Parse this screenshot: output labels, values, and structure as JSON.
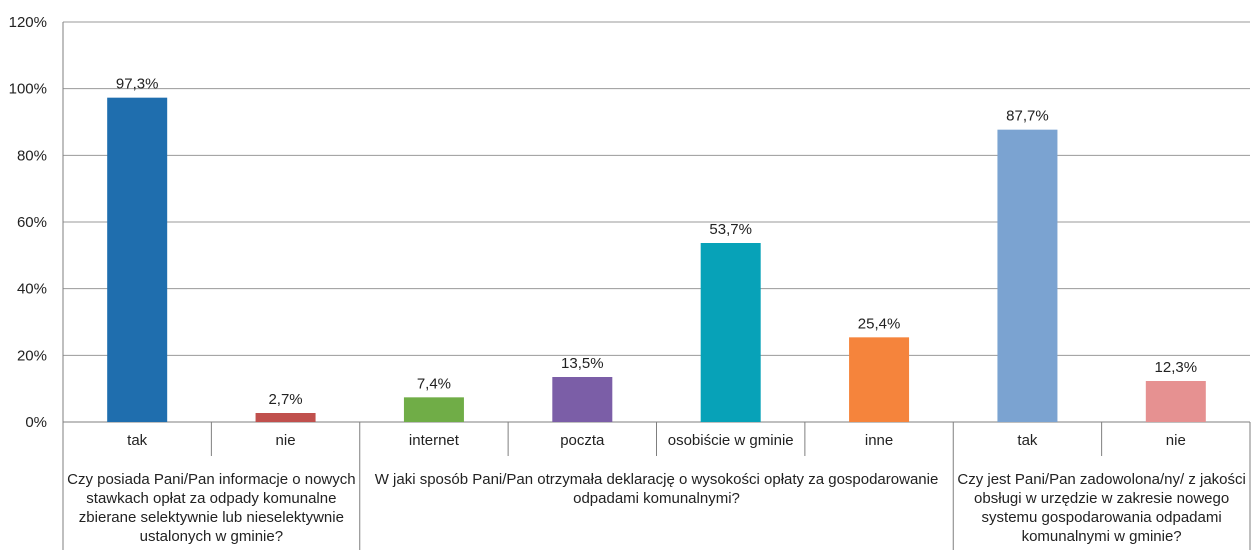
{
  "chart_data": {
    "type": "bar",
    "title": "",
    "xlabel": "",
    "ylabel": "",
    "ylim": [
      0,
      120
    ],
    "yticks": [
      "0%",
      "20%",
      "40%",
      "60%",
      "80%",
      "100%",
      "120%"
    ],
    "grid": true,
    "legend": "none",
    "categories": [
      "tak",
      "nie",
      "internet",
      "poczta",
      "osobiście w gminie",
      "inne",
      "tak",
      "nie"
    ],
    "values": [
      97.3,
      2.7,
      7.4,
      13.5,
      53.7,
      25.4,
      87.7,
      12.3
    ],
    "data_labels": [
      "97,3%",
      "2,7%",
      "7,4%",
      "13,5%",
      "53,7%",
      "25,4%",
      "87,7%",
      "12,3%"
    ],
    "colors": [
      "#1F6EAE",
      "#C0504D",
      "#70AD47",
      "#7B5EA7",
      "#07A2B8",
      "#F5843C",
      "#7BA3D1",
      "#E69191"
    ],
    "groups": [
      {
        "span": [
          0,
          1
        ],
        "lines": [
          "Czy posiada Pani/Pan informacje o nowych",
          "stawkach opłat za odpady komunalne",
          "zbierane selektywnie lub nieselektywnie",
          "ustalonych w gminie?"
        ]
      },
      {
        "span": [
          2,
          5
        ],
        "lines": [
          "W jaki sposób Pani/Pan otrzymała deklarację o wysokości opłaty za gospodarowanie",
          "odpadami komunalnymi?"
        ]
      },
      {
        "span": [
          6,
          7
        ],
        "lines": [
          "Czy jest Pani/Pan zadowolona/ny/ z jakości",
          "obsługi w urzędzie w zakresie nowego",
          "systemu gospodarowania odpadami",
          "komunalnymi w gminie?"
        ]
      }
    ]
  }
}
